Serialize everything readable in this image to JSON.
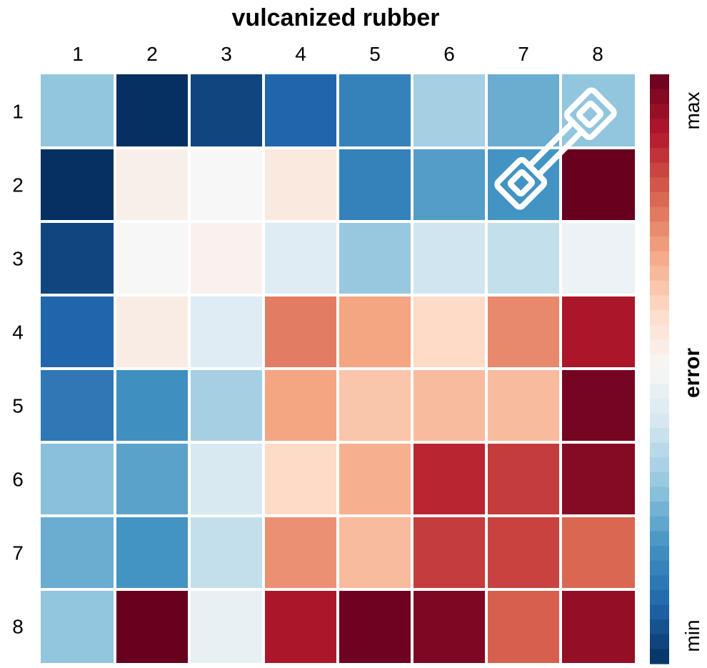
{
  "chart_data": {
    "type": "heatmap",
    "title": "vulcanized rubber",
    "x_tick_labels": [
      "1",
      "2",
      "3",
      "4",
      "5",
      "6",
      "7",
      "8"
    ],
    "y_tick_labels": [
      "1",
      "2",
      "3",
      "4",
      "5",
      "6",
      "7",
      "8"
    ],
    "rows": [
      [
        0.3,
        0.0,
        0.04,
        0.1,
        0.16,
        0.33,
        0.25,
        0.3
      ],
      [
        0.0,
        0.53,
        0.5,
        0.55,
        0.16,
        0.22,
        0.2,
        1.0
      ],
      [
        0.04,
        0.5,
        0.52,
        0.44,
        0.31,
        0.4,
        0.38,
        0.47
      ],
      [
        0.1,
        0.54,
        0.44,
        0.76,
        0.7,
        0.6,
        0.74,
        0.91
      ],
      [
        0.14,
        0.19,
        0.33,
        0.7,
        0.64,
        0.66,
        0.66,
        0.98
      ],
      [
        0.29,
        0.23,
        0.42,
        0.6,
        0.68,
        0.88,
        0.85,
        0.96
      ],
      [
        0.25,
        0.2,
        0.38,
        0.73,
        0.66,
        0.85,
        0.84,
        0.79
      ],
      [
        0.3,
        1.0,
        0.46,
        0.91,
        0.99,
        0.97,
        0.8,
        0.94
      ]
    ],
    "colorbar": {
      "label": "error",
      "max_label": "max",
      "min_label": "min",
      "colors": [
        "#053061",
        "#2166ac",
        "#4393c3",
        "#92c5de",
        "#d1e5f0",
        "#f7f7f7",
        "#fddbc7",
        "#f4a582",
        "#d6604d",
        "#b2182b",
        "#67001f"
      ]
    },
    "annotations": [
      {
        "type": "icon",
        "name": "tensile-test-specimen-icon",
        "cell_row": 2,
        "cell_col": 7
      }
    ]
  }
}
